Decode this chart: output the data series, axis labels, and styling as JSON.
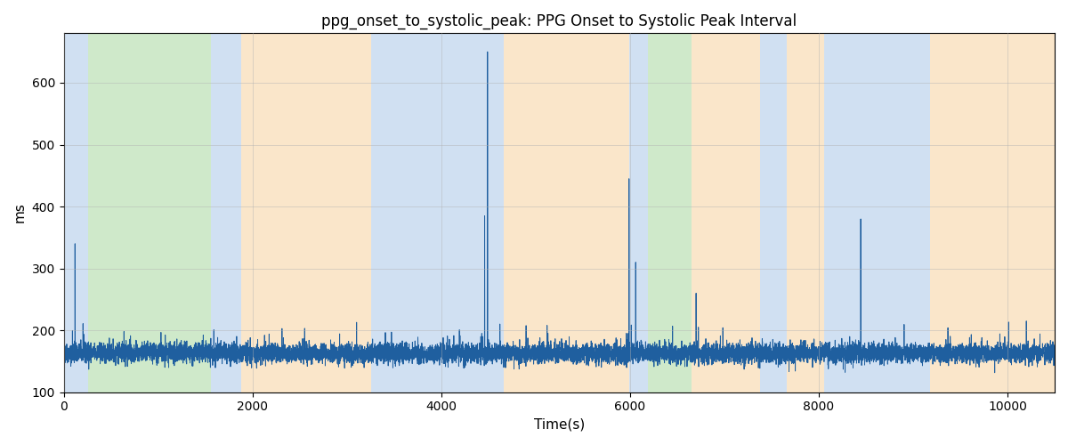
{
  "title": "ppg_onset_to_systolic_peak: PPG Onset to Systolic Peak Interval",
  "xlabel": "Time(s)",
  "ylabel": "ms",
  "ylim": [
    100,
    680
  ],
  "xlim": [
    0,
    10500
  ],
  "line_color": "#1f5f9f",
  "line_width": 0.7,
  "background_regions": [
    {
      "xstart": 0,
      "xend": 260,
      "color": "#aac8e8",
      "alpha": 0.55
    },
    {
      "xstart": 260,
      "xend": 1560,
      "color": "#a8d8a0",
      "alpha": 0.55
    },
    {
      "xstart": 1560,
      "xend": 1880,
      "color": "#aac8e8",
      "alpha": 0.55
    },
    {
      "xstart": 1880,
      "xend": 3260,
      "color": "#f5c88a",
      "alpha": 0.45
    },
    {
      "xstart": 3260,
      "xend": 3620,
      "color": "#aac8e8",
      "alpha": 0.55
    },
    {
      "xstart": 3620,
      "xend": 4660,
      "color": "#aac8e8",
      "alpha": 0.55
    },
    {
      "xstart": 4660,
      "xend": 5990,
      "color": "#f5c88a",
      "alpha": 0.45
    },
    {
      "xstart": 5990,
      "xend": 6190,
      "color": "#aac8e8",
      "alpha": 0.55
    },
    {
      "xstart": 6190,
      "xend": 6650,
      "color": "#a8d8a0",
      "alpha": 0.55
    },
    {
      "xstart": 6650,
      "xend": 7380,
      "color": "#f5c88a",
      "alpha": 0.45
    },
    {
      "xstart": 7380,
      "xend": 7660,
      "color": "#aac8e8",
      "alpha": 0.55
    },
    {
      "xstart": 7660,
      "xend": 8060,
      "color": "#f5c88a",
      "alpha": 0.45
    },
    {
      "xstart": 8060,
      "xend": 9180,
      "color": "#aac8e8",
      "alpha": 0.55
    },
    {
      "xstart": 9180,
      "xend": 10500,
      "color": "#f5c88a",
      "alpha": 0.45
    }
  ],
  "grid_color": "#b0b0b0",
  "grid_alpha": 0.6,
  "yticks": [
    100,
    200,
    300,
    400,
    500,
    600
  ],
  "xticks": [
    0,
    2000,
    4000,
    6000,
    8000,
    10000
  ],
  "base_value": 163,
  "noise_std": 8,
  "figsize": [
    12.0,
    5.0
  ],
  "dpi": 100
}
